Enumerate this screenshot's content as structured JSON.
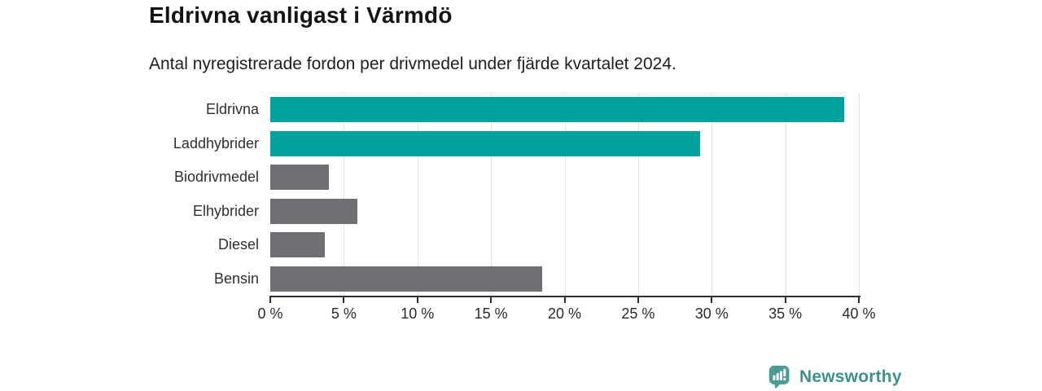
{
  "header": {
    "title": "Eldrivna vanligast i Värmdö",
    "subtitle": "Antal nyregistrerade fordon per drivmedel under fjärde kvartalet 2024."
  },
  "chart_data": {
    "type": "bar",
    "orientation": "horizontal",
    "title": "Eldrivna vanligast i Värmdö",
    "subtitle": "Antal nyregistrerade fordon per drivmedel under fjärde kvartalet 2024.",
    "categories": [
      "Eldrivna",
      "Laddhybrider",
      "Biodrivmedel",
      "Elhybrider",
      "Diesel",
      "Bensin"
    ],
    "values": [
      39.0,
      29.2,
      4.0,
      5.9,
      3.7,
      18.5
    ],
    "unit": "%",
    "xlim": [
      0,
      40
    ],
    "x_ticks": [
      0,
      5,
      10,
      15,
      20,
      25,
      30,
      35,
      40
    ],
    "x_tick_labels": [
      "0 %",
      "5 %",
      "10 %",
      "15 %",
      "20 %",
      "25 %",
      "30 %",
      "35 %",
      "40 %"
    ],
    "grid": "vertical",
    "legend": "none",
    "bar_colors": [
      "#00a29b",
      "#00a29b",
      "#6e6e73",
      "#6e6e73",
      "#6e6e73",
      "#6e6e73"
    ],
    "highlight_color": "#00a29b",
    "default_color": "#6e6e73",
    "grid_color": "#e3e3e3",
    "axis_color": "#2e2e2e"
  },
  "footer": {
    "brand": "Newsworthy",
    "brand_color": "#3d918c",
    "logo_icon": "bar-chart-speech-bubble-icon",
    "logo_color": "#4a9b94"
  }
}
